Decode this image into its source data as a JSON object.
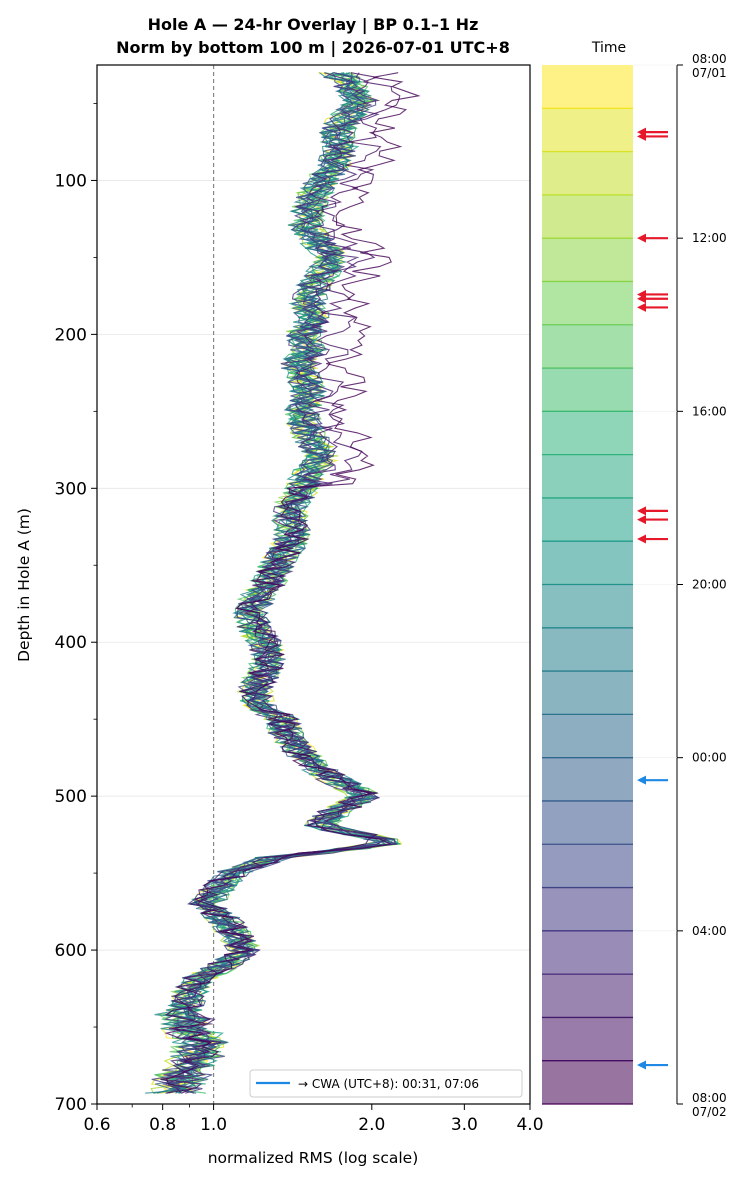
{
  "chart_data": {
    "type": "line",
    "title": [
      "Hole A — 24-hr Overlay  |  BP 0.1–1 Hz",
      "Norm by bottom 100 m  |  2026-07-01 UTC+8"
    ],
    "xlabel": "normalized RMS  (log scale)",
    "ylabel": "Depth in Hole A (m)",
    "xscale": "log",
    "xlim": [
      0.6,
      4.0
    ],
    "xticks": [
      0.6,
      0.8,
      1.0,
      2.0,
      3.0,
      4.0
    ],
    "xtick_labels": [
      "0.6",
      "0.8",
      "1.0",
      "2.0",
      "3.0",
      "4.0"
    ],
    "ylim": [
      700,
      25
    ],
    "yticks": [
      100,
      200,
      300,
      400,
      500,
      600,
      700
    ],
    "ytick_labels": [
      "100",
      "200",
      "300",
      "400",
      "500",
      "600",
      "700"
    ],
    "reference_line": {
      "x": 1.0,
      "style": "dashed"
    },
    "grid": "horizontal",
    "n_series": 24,
    "colormap": "viridis",
    "legend": {
      "position": "bottom-right",
      "label": "→ CWA (UTC+8): 00:31, 07:06",
      "color": "#1e88e5"
    },
    "depth_profile": [
      [
        30,
        1.72
      ],
      [
        40,
        1.85
      ],
      [
        50,
        1.9
      ],
      [
        60,
        1.78
      ],
      [
        70,
        1.72
      ],
      [
        80,
        1.75
      ],
      [
        90,
        1.7
      ],
      [
        100,
        1.62
      ],
      [
        110,
        1.55
      ],
      [
        120,
        1.52
      ],
      [
        130,
        1.5
      ],
      [
        140,
        1.58
      ],
      [
        150,
        1.68
      ],
      [
        160,
        1.62
      ],
      [
        170,
        1.55
      ],
      [
        180,
        1.52
      ],
      [
        190,
        1.55
      ],
      [
        200,
        1.48
      ],
      [
        210,
        1.52
      ],
      [
        220,
        1.45
      ],
      [
        230,
        1.5
      ],
      [
        240,
        1.52
      ],
      [
        250,
        1.48
      ],
      [
        260,
        1.5
      ],
      [
        270,
        1.55
      ],
      [
        280,
        1.62
      ],
      [
        290,
        1.52
      ],
      [
        300,
        1.48
      ],
      [
        310,
        1.42
      ],
      [
        320,
        1.4
      ],
      [
        330,
        1.42
      ],
      [
        340,
        1.38
      ],
      [
        350,
        1.32
      ],
      [
        360,
        1.28
      ],
      [
        370,
        1.22
      ],
      [
        380,
        1.18
      ],
      [
        390,
        1.2
      ],
      [
        400,
        1.25
      ],
      [
        410,
        1.28
      ],
      [
        420,
        1.25
      ],
      [
        430,
        1.2
      ],
      [
        440,
        1.22
      ],
      [
        450,
        1.35
      ],
      [
        460,
        1.38
      ],
      [
        470,
        1.45
      ],
      [
        480,
        1.55
      ],
      [
        490,
        1.72
      ],
      [
        500,
        1.95
      ],
      [
        510,
        1.7
      ],
      [
        520,
        1.6
      ],
      [
        530,
        2.2
      ],
      [
        540,
        1.3
      ],
      [
        550,
        1.08
      ],
      [
        560,
        1.02
      ],
      [
        570,
        0.97
      ],
      [
        580,
        1.05
      ],
      [
        590,
        1.1
      ],
      [
        600,
        1.15
      ],
      [
        610,
        1.05
      ],
      [
        620,
        0.92
      ],
      [
        630,
        0.9
      ],
      [
        640,
        0.88
      ],
      [
        650,
        0.9
      ],
      [
        660,
        0.95
      ],
      [
        670,
        0.92
      ],
      [
        680,
        0.88
      ],
      [
        690,
        0.85
      ],
      [
        700,
        0.87
      ]
    ],
    "colorbar": {
      "label": "Time",
      "tick_labels": [
        "08:00\n07/01",
        "12:00",
        "16:00",
        "20:00",
        "00:00",
        "04:00",
        "08:00\n07/02"
      ],
      "hour_offsets": [
        0,
        4,
        8,
        12,
        16,
        20,
        24
      ],
      "n_bins": 24,
      "red_arrows_hours": [
        1.55,
        1.65,
        4.0,
        5.3,
        5.4,
        5.6,
        10.3,
        10.5,
        10.95
      ],
      "blue_arrows_hours": [
        16.52,
        23.1
      ]
    }
  },
  "colors": {
    "red_arrow": "#e6192b",
    "blue_arrow": "#1e88e5",
    "dashed_line": "#888888"
  }
}
